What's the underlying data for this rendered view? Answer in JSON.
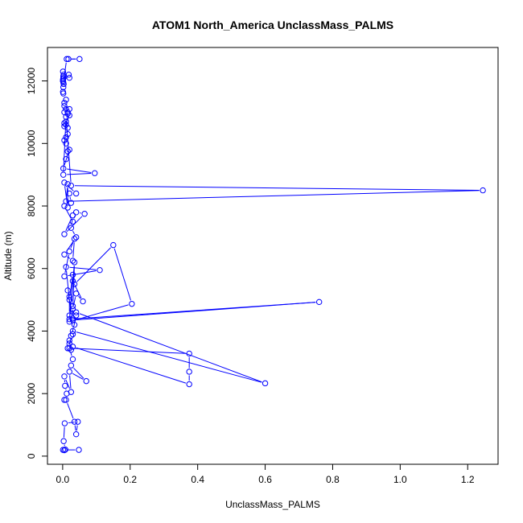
{
  "chart_data": {
    "type": "line",
    "title": "ATOM1 North_America UnclassMass_PALMS",
    "xlabel": "UnclassMass_PALMS",
    "ylabel": "Altitude (m)",
    "xlim": [
      -0.045,
      1.29
    ],
    "ylim": [
      -260,
      13070
    ],
    "xticks": [
      0.0,
      0.2,
      0.4,
      0.6,
      0.8,
      1.0,
      1.2
    ],
    "xtick_labels": [
      "0.0",
      "0.2",
      "0.4",
      "0.6",
      "0.8",
      "1.0",
      "1.2"
    ],
    "yticks": [
      0,
      2000,
      4000,
      6000,
      8000,
      10000,
      12000
    ],
    "ytick_labels": [
      "0",
      "2000",
      "4000",
      "6000",
      "8000",
      "10000",
      "12000"
    ],
    "grid": false,
    "legend": "none",
    "marker": "open-circle",
    "color": "#0000ff",
    "series": [
      {
        "x": [
          0.048,
          0.001,
          0.005,
          0.008,
          0.003,
          0.006,
          0.045,
          0.04,
          0.035,
          0.01,
          0.005,
          0.012,
          0.007,
          0.005,
          0.025,
          0.02,
          0.07,
          0.025,
          0.03,
          0.02,
          0.375,
          0.375,
          0.375,
          0.03,
          0.025,
          0.02,
          0.03,
          0.015,
          0.02,
          0.025,
          0.035,
          0.04,
          0.03,
          0.6,
          0.04,
          0.03,
          0.03,
          0.02,
          0.02,
          0.015,
          0.03,
          0.76,
          0.02,
          0.03,
          0.06,
          0.04,
          0.03,
          0.035,
          0.02,
          0.205,
          0.15,
          0.035,
          0.03,
          0.02,
          0.01,
          0.11,
          0.005,
          0.02,
          0.035,
          0.03,
          0.005,
          0.04,
          0.025,
          0.03,
          0.005,
          0.065,
          0.04,
          0.03,
          0.005,
          0.025,
          0.02,
          0.04,
          0.005,
          0.015,
          0.015,
          0.01,
          1.245,
          0.025,
          0.01,
          0.002,
          0.095,
          0.002,
          0.02,
          0.01,
          0.015,
          0.01,
          0.005,
          0.01,
          0.015,
          0.015,
          0.005,
          0.01,
          0.02,
          0.005,
          0.01,
          0.015,
          0.005,
          0.01,
          0.005,
          0.02,
          0.015,
          0.005,
          0.01,
          0.002,
          0.001,
          0.002,
          0.003,
          0.001,
          0.002,
          0.001,
          0.003,
          0.002,
          0.001,
          0.02,
          0.001,
          0.018,
          0.002,
          0.012,
          0.05,
          0.017
        ],
        "y": [
          200,
          200,
          190,
          210,
          480,
          1050,
          1100,
          700,
          1100,
          1800,
          1800,
          2000,
          2250,
          2550,
          2050,
          2700,
          2400,
          2900,
          3100,
          3450,
          3280,
          2700,
          2300,
          3500,
          3400,
          3700,
          3900,
          3450,
          3600,
          3850,
          4200,
          4500,
          4000,
          2330,
          4600,
          4800,
          4400,
          4500,
          5100,
          5300,
          4350,
          4930,
          4380,
          5600,
          4950,
          5200,
          4700,
          6200,
          4300,
          4870,
          6750,
          5500,
          5800,
          5000,
          6050,
          5950,
          5750,
          6550,
          6950,
          6250,
          6450,
          7000,
          7300,
          7700,
          7100,
          7750,
          7800,
          7500,
          8000,
          8100,
          8400,
          8400,
          8750,
          7950,
          8700,
          8150,
          8500,
          8650,
          10850,
          9000,
          9050,
          9200,
          9800,
          9500,
          9750,
          10000,
          10100,
          10200,
          10300,
          10500,
          10550,
          10600,
          10900,
          10650,
          10700,
          10950,
          11000,
          11100,
          11200,
          11100,
          11000,
          11300,
          11400,
          11600,
          11650,
          11800,
          11900,
          12000,
          12100,
          12050,
          12200,
          12150,
          12300,
          12100,
          12000,
          12200,
          11950,
          12700,
          12700,
          12700
        ]
      }
    ]
  }
}
